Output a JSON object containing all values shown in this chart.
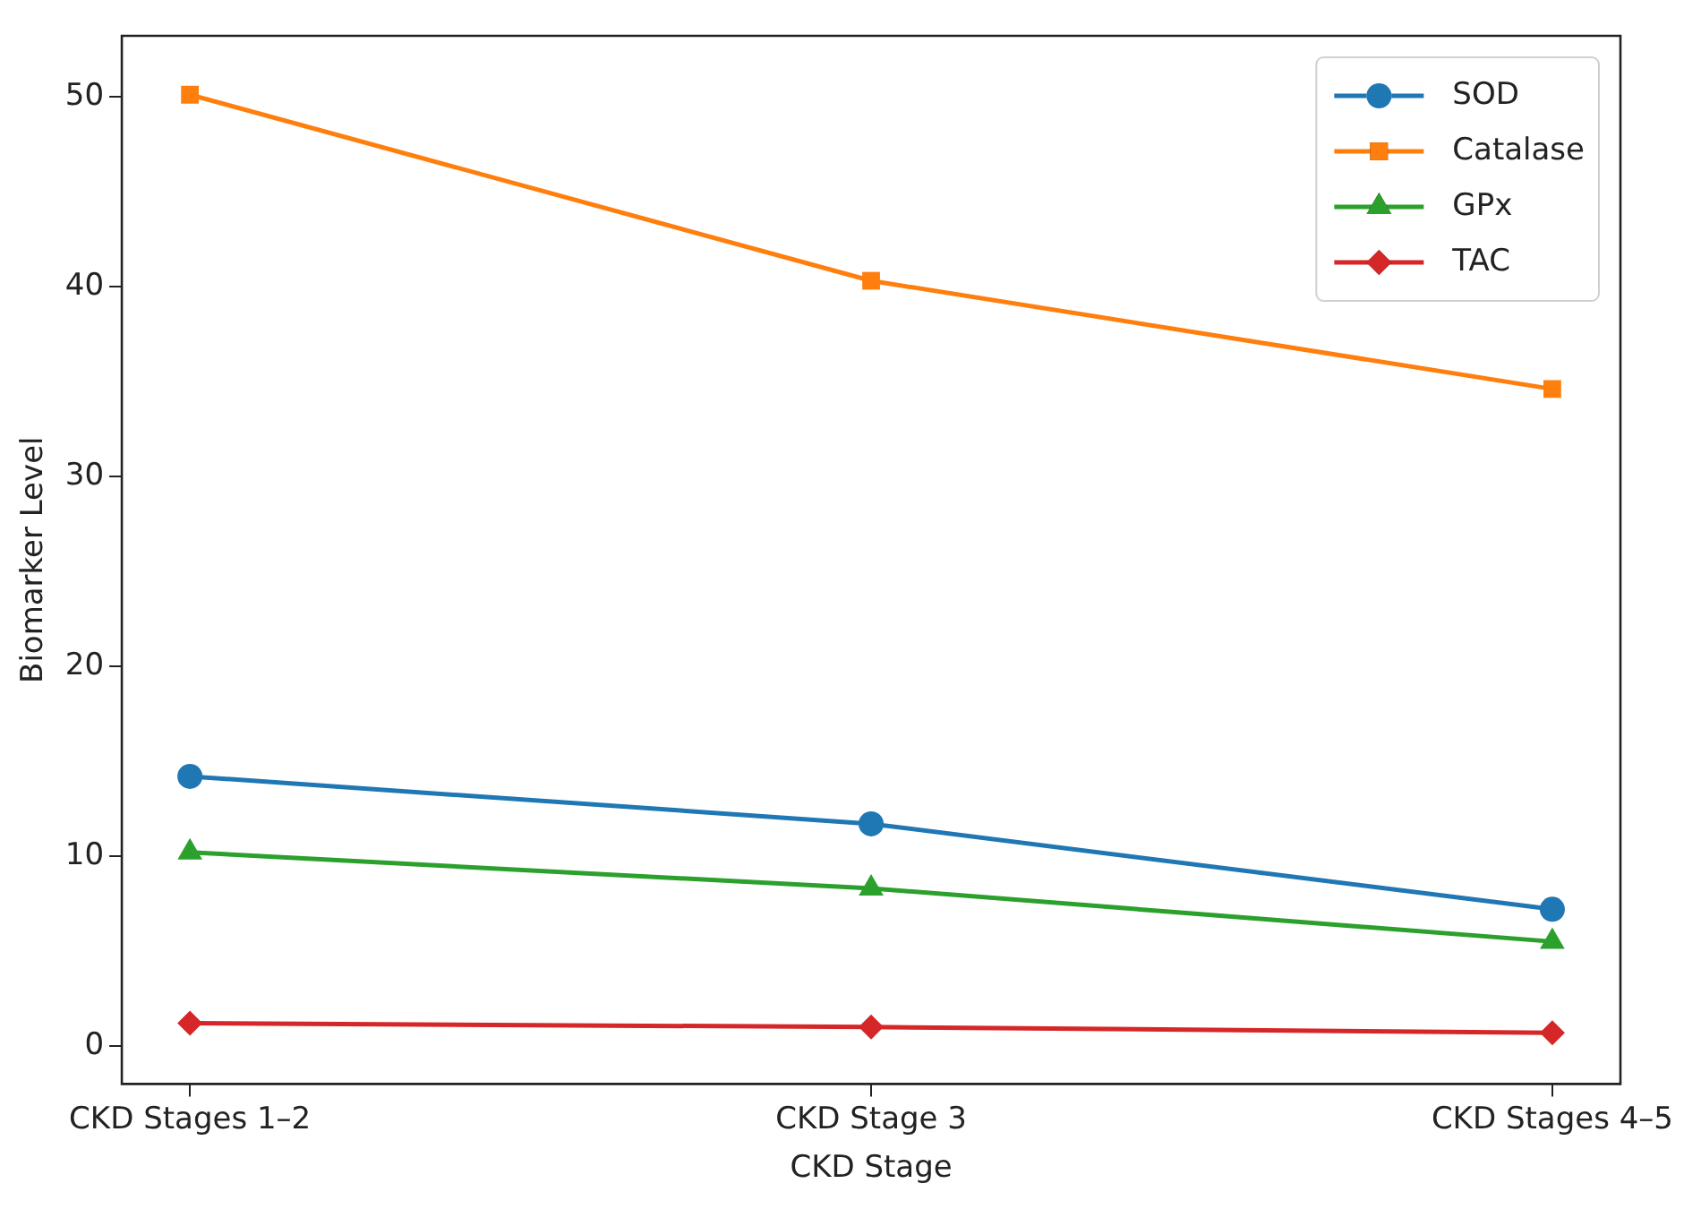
{
  "chart_data": {
    "type": "line",
    "xlabel": "CKD Stage",
    "ylabel": "Biomarker Level",
    "categories": [
      "CKD Stages 1–2",
      "CKD Stage 3",
      "CKD Stages 4–5"
    ],
    "series": [
      {
        "name": "SOD",
        "color": "#1f77b4",
        "marker": "circle",
        "values": [
          14.2,
          11.7,
          7.2
        ]
      },
      {
        "name": "Catalase",
        "color": "#ff7f0e",
        "marker": "square",
        "values": [
          50.1,
          40.3,
          34.6
        ]
      },
      {
        "name": "GPx",
        "color": "#2ca02c",
        "marker": "triangle",
        "values": [
          10.2,
          8.3,
          5.5
        ]
      },
      {
        "name": "TAC",
        "color": "#d62728",
        "marker": "diamond",
        "values": [
          1.2,
          1.0,
          0.7
        ]
      }
    ],
    "ylim": [
      -2,
      53.2
    ],
    "yticks": [
      0,
      10,
      20,
      30,
      40,
      50
    ],
    "grid": false,
    "legend": "top right",
    "line_style": "solid"
  }
}
